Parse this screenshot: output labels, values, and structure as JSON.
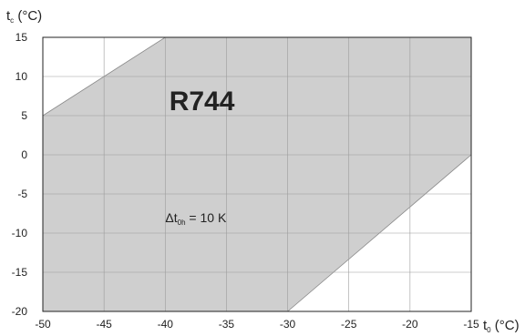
{
  "chart_data": {
    "type": "area",
    "title": "",
    "xlabel": {
      "main": "t",
      "sub": "0",
      "unit": " (°C)"
    },
    "ylabel": {
      "main": "t",
      "sub": "c",
      "unit": " (°C)"
    },
    "xlim": [
      -50,
      -15
    ],
    "ylim": [
      -20,
      15
    ],
    "xticks": [
      -50,
      -45,
      -40,
      -35,
      -30,
      -25,
      -20,
      -15
    ],
    "yticks": [
      -20,
      -15,
      -10,
      -5,
      0,
      5,
      10,
      15
    ],
    "grid": true,
    "series": [
      {
        "values": [
          {
            "x": -50,
            "y": -20
          },
          {
            "x": -50,
            "y": 5
          },
          {
            "x": -40,
            "y": 15
          },
          {
            "x": -15,
            "y": 15
          },
          {
            "x": -15,
            "y": 0
          },
          {
            "x": -30,
            "y": -20
          }
        ],
        "color": "#cfcfcf"
      }
    ],
    "annotations": [
      {
        "label": "R744",
        "x": -37,
        "y": 7
      },
      {
        "delta": "Δt",
        "sub": "0h",
        "text": " = 10 K",
        "x": -37.5,
        "y": -8
      }
    ]
  }
}
